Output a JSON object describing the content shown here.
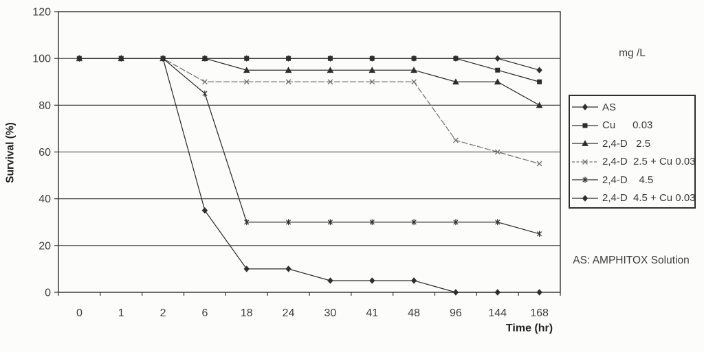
{
  "chart_data": {
    "type": "line",
    "title": "",
    "xlabel": "Time (hr)",
    "ylabel": "Survival (%)",
    "unit_label": "mg /L",
    "note": "AS: AMPHITOX Solution",
    "categories": [
      "0",
      "1",
      "2",
      "6",
      "18",
      "24",
      "30",
      "41",
      "48",
      "96",
      "144",
      "168"
    ],
    "y_ticks": [
      0,
      20,
      40,
      60,
      80,
      100,
      120
    ],
    "ylim": [
      0,
      120
    ],
    "grid": true,
    "legend_position": "right",
    "colors": {
      "line": "#2e2e2e",
      "muted": "#717171",
      "text": "#3d3d3d",
      "background": "#fcfcfb"
    },
    "series": [
      {
        "name": "as",
        "label": "AS",
        "marker": "diamond",
        "muted": false,
        "values": [
          100,
          100,
          100,
          100,
          100,
          100,
          100,
          100,
          100,
          100,
          100,
          95
        ]
      },
      {
        "name": "cu-0-03",
        "label": "Cu      0.03",
        "marker": "square",
        "muted": false,
        "values": [
          100,
          100,
          100,
          100,
          100,
          100,
          100,
          100,
          100,
          100,
          95,
          90
        ]
      },
      {
        "name": "2-4-d-2-5",
        "label": "2,4-D   2.5",
        "marker": "triangle",
        "muted": false,
        "values": [
          100,
          100,
          100,
          100,
          95,
          95,
          95,
          95,
          95,
          90,
          90,
          80
        ]
      },
      {
        "name": "2-4-d-2-5-cu-0-03",
        "label": "2,4-D  2.5 + Cu 0.03",
        "marker": "x",
        "muted": true,
        "values": [
          100,
          100,
          100,
          90,
          90,
          90,
          90,
          90,
          90,
          65,
          60,
          55
        ]
      },
      {
        "name": "2-4-d-4-5",
        "label": "2,4-D    4.5",
        "marker": "star",
        "muted": false,
        "values": [
          100,
          100,
          100,
          85,
          30,
          30,
          30,
          30,
          30,
          30,
          30,
          25
        ]
      },
      {
        "name": "2-4-d-4-5-cu-0-03",
        "label": "2,4-D  4.5 + Cu 0.03",
        "marker": "diamond",
        "muted": false,
        "values": [
          100,
          100,
          100,
          35,
          10,
          10,
          5,
          5,
          5,
          0,
          0,
          0
        ]
      }
    ]
  }
}
